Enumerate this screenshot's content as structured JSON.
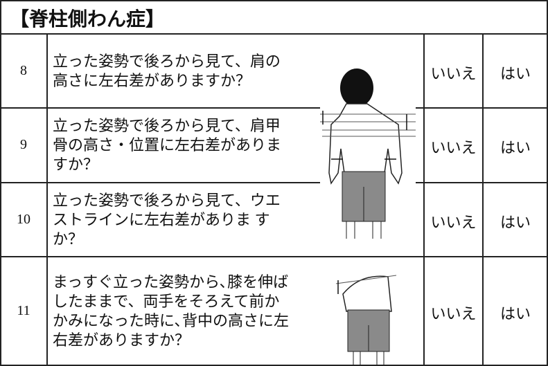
{
  "header": {
    "title": "【脊柱側わん症】"
  },
  "rows": [
    {
      "number": "8",
      "lines": [
        "立った姿勢で後ろから見て、肩の",
        "高さに左右差がありますか？"
      ],
      "no": "いいえ",
      "yes": "はい"
    },
    {
      "number": "9",
      "lines": [
        "立った姿勢で後ろから見て、肩甲",
        "骨の高さ・位置に左右差がありま",
        "すか？"
      ],
      "no": "いいえ",
      "yes": "はい"
    },
    {
      "number": "10",
      "lines": [
        "立った姿勢で後ろから見て、ウエ",
        "ストラインに左右差がありま す",
        "か？"
      ],
      "no": "いいえ",
      "yes": "はい"
    },
    {
      "number": "11",
      "lines": [
        "まっすぐ立った姿勢から､膝を伸ば",
        "したままで、両手をそろえて前か",
        "かみになった時に､背中の高さに左",
        "右差がありますか？"
      ],
      "no": "いいえ",
      "yes": "はい"
    }
  ]
}
